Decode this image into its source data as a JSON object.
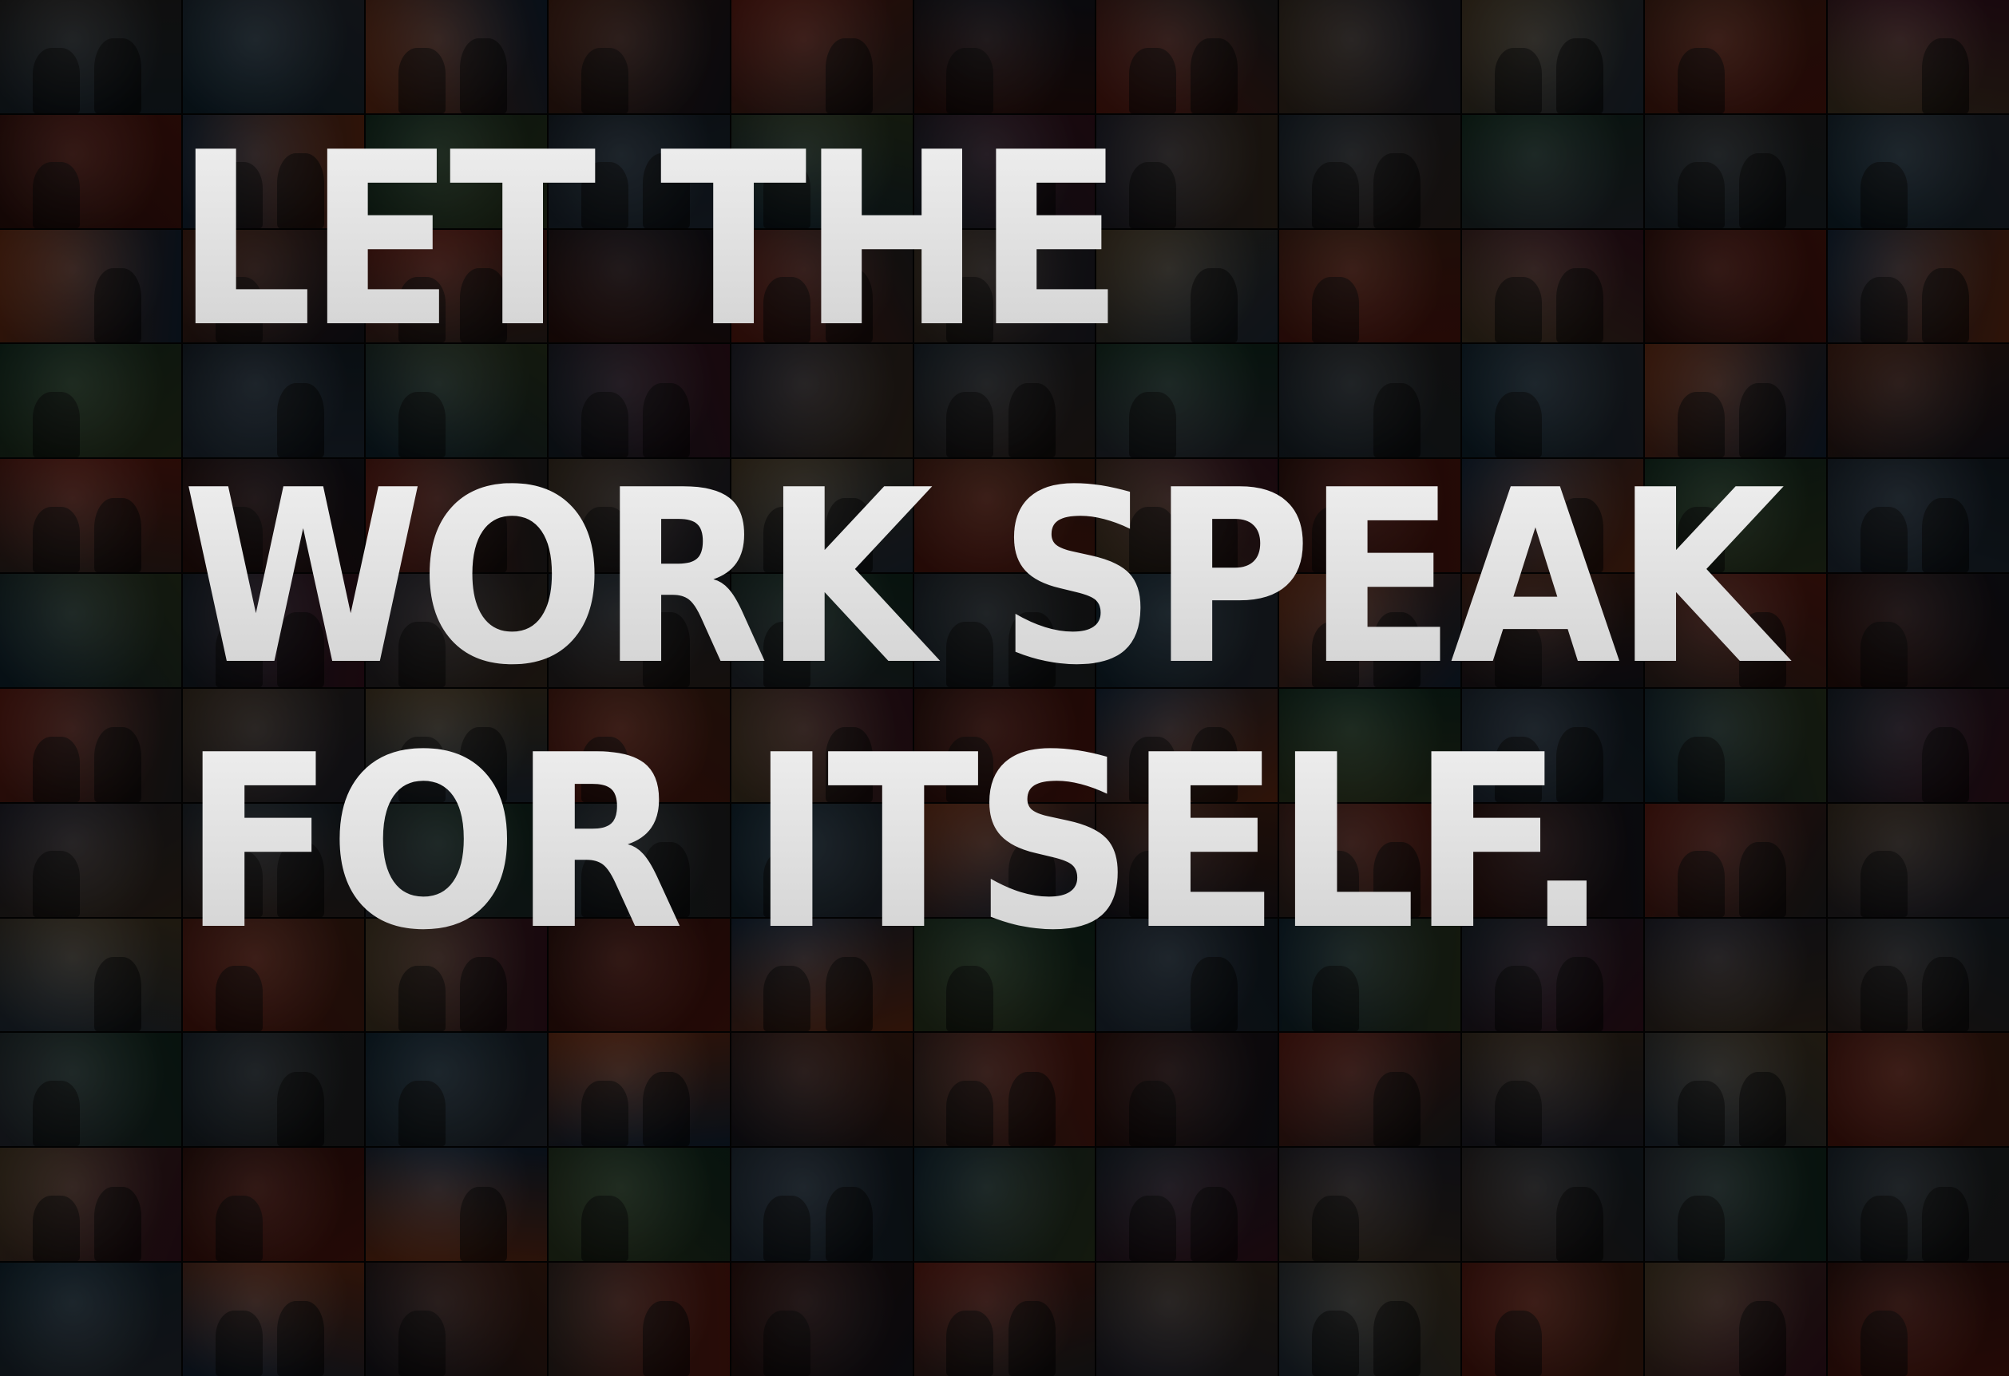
{
  "headline": {
    "line1": "LET THE",
    "line2": "WORK SPEAK",
    "line3": "FOR ITSELF."
  },
  "colors": {
    "background": "#0a0a0a",
    "text_fill_top": "#f2f2f2",
    "text_fill_bottom": "#cfcfcf"
  },
  "collage": {
    "tile_tones": [
      "#3a1510",
      "#1d2a36",
      "#4a3a2a",
      "#22303b",
      "#5a2a1a",
      "#2e2e2e",
      "#6b1e14",
      "#1a3048",
      "#3b4a2a",
      "#40302a",
      "#153040",
      "#7a2216",
      "#2a2a38",
      "#5c4a30",
      "#183a2a",
      "#4a1a2a",
      "#333a44",
      "#8a3a1a",
      "#1e1e28",
      "#2b3b4b"
    ]
  }
}
